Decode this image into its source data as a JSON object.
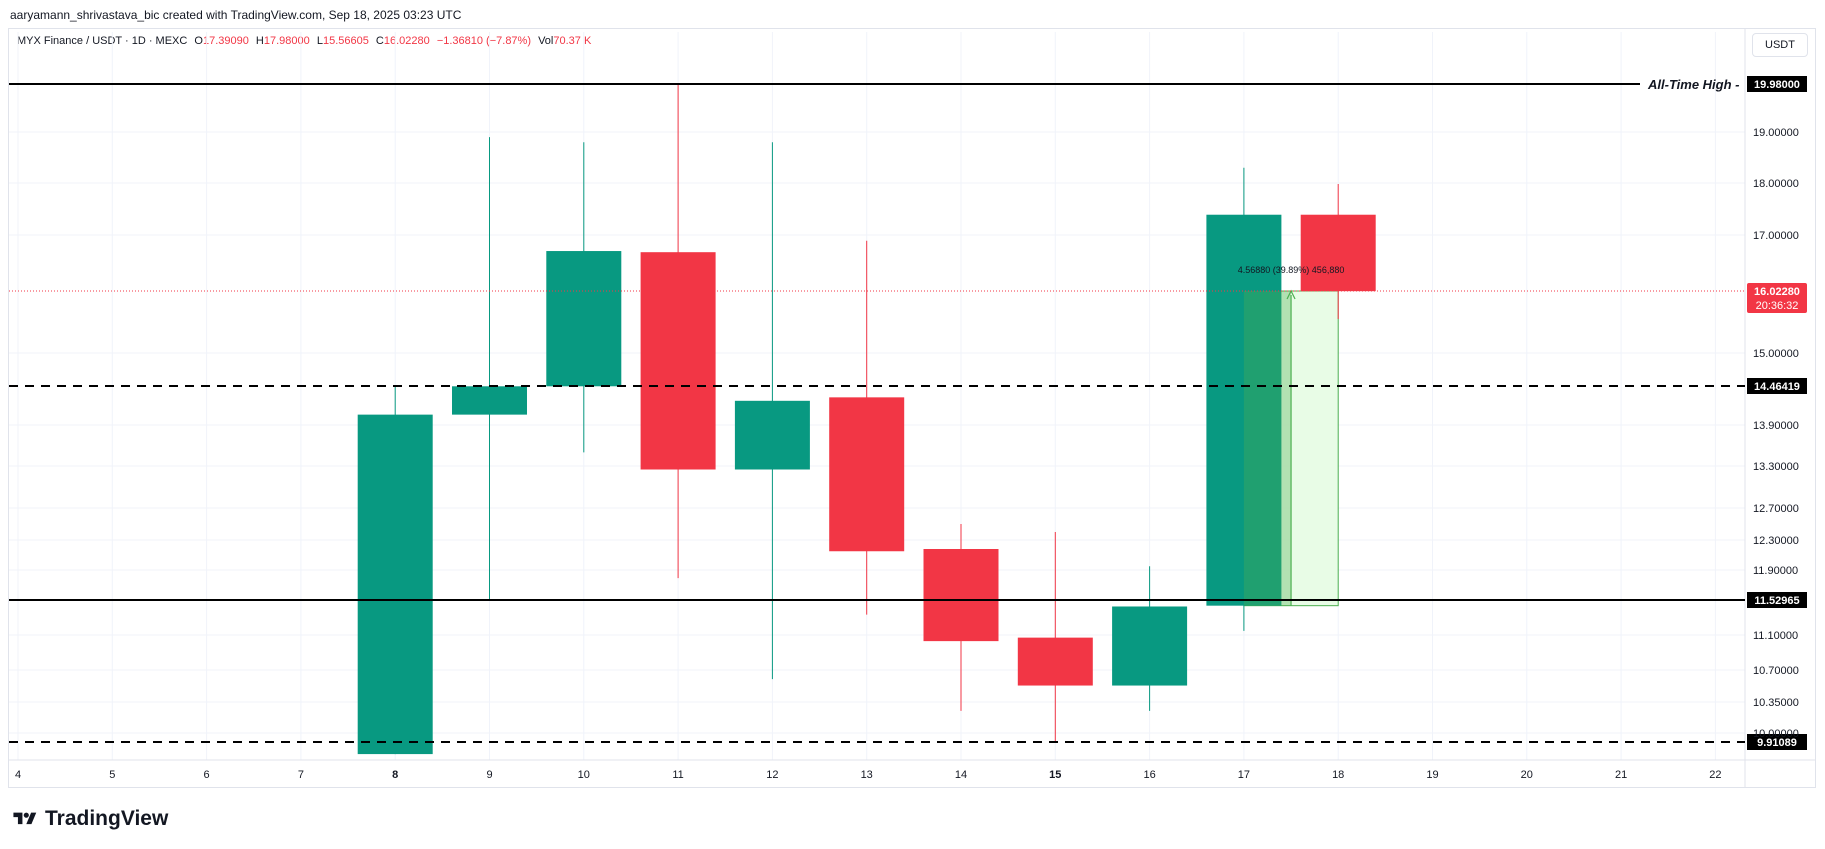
{
  "header": {
    "credit": "aaryamann_shrivastava_bic created with TradingView.com, Sep 18, 2025 03:23 UTC"
  },
  "legend": {
    "symbol": "MYX Finance / USDT · 1D · MEXC",
    "o_label": "O",
    "o_value": "17.39090",
    "h_label": "H",
    "h_value": "17.98000",
    "l_label": "L",
    "l_value": "15.56605",
    "c_label": "C",
    "c_value": "16.02280",
    "change": "−1.36810 (−7.87%)",
    "vol_label": "Vol",
    "vol_value": "70.37 K"
  },
  "currency_button": "USDT",
  "brand": "TradingView",
  "colors": {
    "up": "#089981",
    "down": "#f23645",
    "measure": "#4caf50",
    "measure_fill": "#e6fce3"
  },
  "chart_data": {
    "type": "candlestick",
    "x_ticks": [
      "4",
      "5",
      "6",
      "7",
      "8",
      "9",
      "10",
      "11",
      "12",
      "13",
      "14",
      "15",
      "16",
      "17",
      "18",
      "19",
      "20",
      "21",
      "22"
    ],
    "bold_ticks": [
      "8",
      "15"
    ],
    "candles": [
      {
        "day": 8,
        "open": 9.87,
        "high": 14.46,
        "low": 9.87,
        "close": 14.05
      },
      {
        "day": 9,
        "open": 14.05,
        "high": 18.9,
        "low": 11.53,
        "close": 14.46
      },
      {
        "day": 10,
        "open": 14.46,
        "high": 18.8,
        "low": 13.5,
        "close": 16.72
      },
      {
        "day": 11,
        "open": 16.7,
        "high": 19.98,
        "low": 11.8,
        "close": 13.25
      },
      {
        "day": 12,
        "open": 13.25,
        "high": 18.8,
        "low": 10.6,
        "close": 14.25
      },
      {
        "day": 13,
        "open": 14.3,
        "high": 16.9,
        "low": 11.35,
        "close": 12.15
      },
      {
        "day": 14,
        "open": 12.18,
        "high": 12.5,
        "low": 10.25,
        "close": 11.03
      },
      {
        "day": 15,
        "open": 11.07,
        "high": 12.4,
        "low": 9.91,
        "close": 10.53
      },
      {
        "day": 16,
        "open": 10.53,
        "high": 11.95,
        "low": 10.25,
        "close": 11.45
      },
      {
        "day": 17,
        "open": 11.46,
        "high": 18.3,
        "low": 11.15,
        "close": 17.39
      },
      {
        "day": 18,
        "open": 17.39,
        "high": 17.98,
        "low": 15.56,
        "close": 16.02
      }
    ],
    "y_ticks": [
      "19.00000",
      "18.00000",
      "17.00000",
      "15.00000",
      "13.90000",
      "13.30000",
      "12.70000",
      "12.30000",
      "11.90000",
      "11.10000",
      "10.70000",
      "10.35000",
      "10.00000"
    ],
    "levels": [
      {
        "value": 19.98,
        "label": "19.98000",
        "style": "solid",
        "annotation": "All-Time High"
      },
      {
        "value": 14.46419,
        "label": "14.46419",
        "style": "dashed",
        "annotation": ""
      },
      {
        "value": 11.52965,
        "label": "11.52965",
        "style": "solid",
        "annotation": ""
      },
      {
        "value": 9.91089,
        "label": "9.91089",
        "style": "dashed",
        "annotation": ""
      }
    ],
    "last_price": {
      "value": 16.0228,
      "label": "16.02280",
      "countdown": "20:36:32"
    },
    "measure": {
      "from_day": 17,
      "to_day": 18,
      "low": 11.46,
      "high": 16.0228,
      "text": "4.56880 (39.89%) 456,880"
    }
  }
}
